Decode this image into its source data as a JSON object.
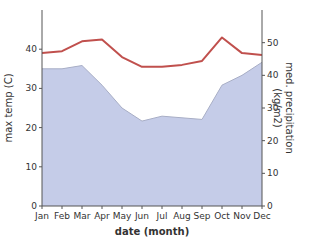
{
  "chart_data": {
    "type": "line",
    "xlabel": "date (month)",
    "ylabel": "max temp (C)",
    "y2label": "med. precipitation\n(kg/m2)",
    "categories": [
      "Jan",
      "Feb",
      "Mar",
      "Apr",
      "May",
      "Jun",
      "Jul",
      "Aug",
      "Sep",
      "Oct",
      "Nov",
      "Dec"
    ],
    "series": [
      {
        "type": "line",
        "color": "#c0504d",
        "values": [
          39,
          39.5,
          42,
          42.5,
          38,
          35.5,
          35.5,
          36,
          37,
          43,
          39,
          38.5
        ]
      },
      {
        "type": "area",
        "axis": "y2",
        "color": "#c5cce8",
        "values": [
          42,
          42,
          43,
          37,
          30,
          26,
          27.5,
          27,
          26.5,
          37,
          40,
          44
        ]
      }
    ],
    "ylim": [
      0,
      50
    ],
    "yticks": [
      0,
      10,
      20,
      30,
      40
    ],
    "y2lim": [
      0,
      60
    ],
    "y2ticks": [
      0,
      10,
      20,
      30,
      40,
      50
    ],
    "grid": false
  }
}
